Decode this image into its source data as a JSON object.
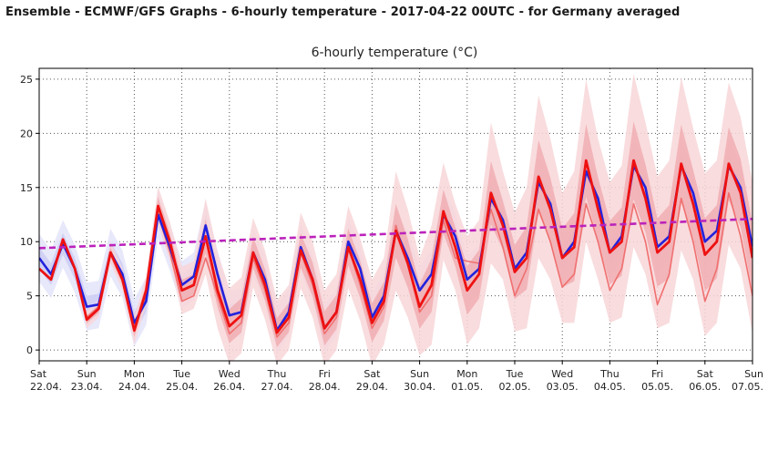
{
  "page_title": "Ensemble - ECMWF/GFS Graphs - 6-hourly temperature - 2017-04-22 00UTC - for Germany averaged",
  "colors": {
    "gfs_line": "#2222dd",
    "gfs_band_outer": "#e6e6fb",
    "gfs_band_inner": "#c8c8f2",
    "ecmwf_line": "#ee1111",
    "ecmwf_band_outer": "#f8d6d8",
    "ecmwf_band_inner": "#f0a4aa",
    "ecmwf_control": "#f07070",
    "climate_trend": "#bb22bb"
  },
  "chart_data": {
    "type": "line",
    "title": "6-hourly temperature (°C)",
    "xlabel": "",
    "ylabel": "",
    "ylim": [
      -1,
      26
    ],
    "yticks": [
      0,
      5,
      10,
      15,
      20,
      25
    ],
    "x_range_hours": [
      0,
      360
    ],
    "x_step_hours": 6,
    "grid": true,
    "xtick_days": [
      {
        "day": "Sat",
        "date": "22.04."
      },
      {
        "day": "Sun",
        "date": "23.04."
      },
      {
        "day": "Mon",
        "date": "24.04."
      },
      {
        "day": "Tue",
        "date": "25.04."
      },
      {
        "day": "Wed",
        "date": "26.04."
      },
      {
        "day": "Thu",
        "date": "27.04."
      },
      {
        "day": "Fri",
        "date": "28.04."
      },
      {
        "day": "Sat",
        "date": "29.04."
      },
      {
        "day": "Sun",
        "date": "30.04."
      },
      {
        "day": "Mon",
        "date": "01.05."
      },
      {
        "day": "Tue",
        "date": "02.05."
      },
      {
        "day": "Wed",
        "date": "03.05."
      },
      {
        "day": "Thu",
        "date": "04.05."
      },
      {
        "day": "Fri",
        "date": "05.05."
      },
      {
        "day": "Sat",
        "date": "06.05."
      },
      {
        "day": "Sun",
        "date": "07.05."
      }
    ],
    "series": [
      {
        "values": [
          8.5,
          7.0,
          9.8,
          7.5,
          4.0,
          4.2,
          9.0,
          7.0,
          2.5,
          4.5,
          12.5,
          9.5,
          6.0,
          6.8,
          11.5,
          7.0,
          3.2,
          3.5,
          9.0,
          6.5,
          1.8,
          3.5,
          9.5,
          6.5,
          2.0,
          3.5,
          10.0,
          7.5,
          3.0,
          5.0,
          11.0,
          8.5,
          5.5,
          7.0,
          12.5,
          10.5,
          6.5,
          7.5,
          14.0,
          12.0,
          7.5,
          9.0,
          15.5,
          13.5,
          8.5,
          10.0,
          16.5,
          14.0,
          9.0,
          10.5,
          17.0,
          15.0,
          9.5,
          10.5,
          17.0,
          14.5,
          10.0,
          11.0,
          17.0,
          15.0,
          9.5
        ]
      },
      {
        "values": [
          7.5,
          6.5,
          10.2,
          7.5,
          2.8,
          3.8,
          9.0,
          6.5,
          1.8,
          5.5,
          13.3,
          10.0,
          5.5,
          6.0,
          10.5,
          5.5,
          2.2,
          3.2,
          9.0,
          6.0,
          1.6,
          3.0,
          9.2,
          6.5,
          2.0,
          3.5,
          9.5,
          6.5,
          2.5,
          4.5,
          11.0,
          8.0,
          4.0,
          6.0,
          12.8,
          9.5,
          5.5,
          7.0,
          14.5,
          11.5,
          7.2,
          8.5,
          16.0,
          13.0,
          8.5,
          9.5,
          17.5,
          13.0,
          9.0,
          10.0,
          17.5,
          14.0,
          9.0,
          10.0,
          17.2,
          13.5,
          8.8,
          10.0,
          17.2,
          14.5,
          8.5
        ]
      },
      {
        "values": [
          7.5,
          6.5,
          10.0,
          7.5,
          3.0,
          4.0,
          9.0,
          6.5,
          2.0,
          5.0,
          12.5,
          9.0,
          4.5,
          5.0,
          8.5,
          5.0,
          1.5,
          2.5,
          8.5,
          5.5,
          1.2,
          2.5,
          9.0,
          6.0,
          1.5,
          3.0,
          9.5,
          6.0,
          2.0,
          4.0,
          11.5,
          8.0,
          3.5,
          5.0,
          12.0,
          8.5,
          8.2,
          8.0,
          13.0,
          9.5,
          5.0,
          7.5,
          13.0,
          10.0,
          5.8,
          7.0,
          13.5,
          10.0,
          5.5,
          7.5,
          13.5,
          10.0,
          4.2,
          7.0,
          14.0,
          10.0,
          4.5,
          7.5,
          14.5,
          10.5,
          5.0
        ]
      },
      {
        "values": [
          9.4,
          12.1
        ]
      },
      {
        "values": [
          1,
          1,
          1,
          1,
          1,
          1,
          1,
          1,
          1,
          1,
          1,
          1,
          1,
          1,
          1,
          1,
          1,
          1,
          1,
          1,
          1,
          1,
          1,
          1,
          1,
          1,
          1,
          1,
          1,
          1,
          1,
          1,
          1,
          1,
          1,
          1,
          1,
          1,
          1,
          1,
          1,
          1,
          1,
          1,
          1,
          1,
          1,
          1,
          1,
          1,
          1,
          1,
          1,
          1,
          1,
          1,
          1,
          1,
          1,
          1,
          1
        ]
      },
      {
        "values": [
          0,
          0,
          0,
          0,
          0.3,
          0.3,
          0.3,
          0.3,
          0.5,
          0.5,
          0.6,
          0.6,
          0.8,
          0.8,
          1.0,
          1.0,
          1.2,
          1.2,
          1.3,
          1.3,
          1.4,
          1.4,
          1.5,
          1.5,
          1.6,
          1.6,
          1.7,
          1.7,
          1.8,
          1.8,
          2.2,
          2.0,
          2.0,
          2.2,
          2.6,
          2.6,
          3.0,
          3.0,
          3.0,
          3.0,
          3.0,
          3.0,
          3.0,
          3.0,
          3.0,
          3.0,
          3.0,
          3.0,
          3.0,
          3.0,
          3.0,
          3.0,
          3.0,
          3.0,
          3.0,
          3.0,
          3.0,
          3.0,
          3.0,
          3.0,
          3.0
        ]
      },
      {
        "values": [
          0,
          0,
          0,
          0,
          0.8,
          0.8,
          1.0,
          1.0,
          1.3,
          1.3,
          1.8,
          1.8,
          2.2,
          2.2,
          3.5,
          3.5,
          3.5,
          3.5,
          3.2,
          3.2,
          3.0,
          3.0,
          3.5,
          3.5,
          3.5,
          3.5,
          3.8,
          3.8,
          4.0,
          4.0,
          5.5,
          5.0,
          4.5,
          5.5,
          4.5,
          4.0,
          5.0,
          5.0,
          6.5,
          5.0,
          5.5,
          6.5,
          7.5,
          6.5,
          6.0,
          7.0,
          7.5,
          6.5,
          6.5,
          7.0,
          8.0,
          7.0,
          7.0,
          7.5,
          8.0,
          7.0,
          7.5,
          7.5,
          7.5,
          7.0,
          7.0
        ]
      }
    ]
  }
}
